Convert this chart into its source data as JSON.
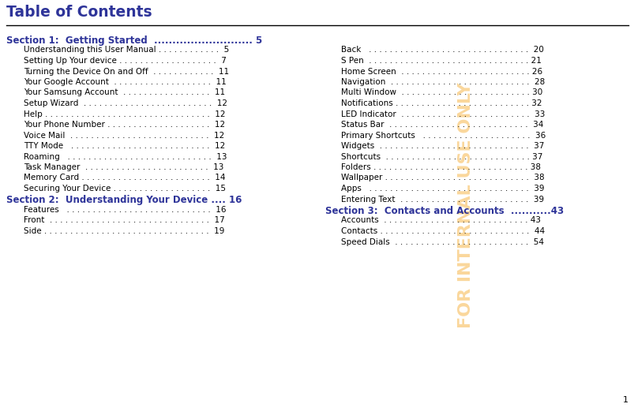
{
  "title": "Table of Contents",
  "title_color": "#2E3499",
  "title_fontsize": 13.5,
  "separator_color": "#000000",
  "background_color": "#ffffff",
  "draft_watermark": "FOR INTERNAL USE ONLY",
  "draft_color": "#f5a623",
  "draft_alpha": 0.45,
  "page_number": "1",
  "section_color": "#2E3499",
  "section_fontsize": 8.5,
  "item_color": "#000000",
  "item_fontsize": 7.5,
  "left_column": [
    {
      "type": "section",
      "text": "Section 1:  Getting Started  ........................... 5"
    },
    {
      "type": "item",
      "text": "Understanding this User Manual . . . . . . . . . . . .  5"
    },
    {
      "type": "item",
      "text": "Setting Up Your device . . . . . . . . . . . . . . . . . . .  7"
    },
    {
      "type": "item",
      "text": "Turning the Device On and Off  . . . . . . . . . . . .  11"
    },
    {
      "type": "item",
      "text": "Your Google Account  . . . . . . . . . . . . . . . . . . .  11"
    },
    {
      "type": "item",
      "text": "Your Samsung Account  . . . . . . . . . . . . . . . . .  11"
    },
    {
      "type": "item",
      "text": "Setup Wizard  . . . . . . . . . . . . . . . . . . . . . . . . .  12"
    },
    {
      "type": "item",
      "text": "Help . . . . . . . . . . . . . . . . . . . . . . . . . . . . . . . .  12"
    },
    {
      "type": "item",
      "text": "Your Phone Number . . . . . . . . . . . . . . . . . . . .  12"
    },
    {
      "type": "item",
      "text": "Voice Mail  . . . . . . . . . . . . . . . . . . . . . . . . . . .  12"
    },
    {
      "type": "item",
      "text": "TTY Mode   . . . . . . . . . . . . . . . . . . . . . . . . . . .  12"
    },
    {
      "type": "item",
      "text": "Roaming   . . . . . . . . . . . . . . . . . . . . . . . . . . . .  13"
    },
    {
      "type": "item",
      "text": "Task Manager  . . . . . . . . . . . . . . . . . . . . . . . .  13"
    },
    {
      "type": "item",
      "text": "Memory Card . . . . . . . . . . . . . . . . . . . . . . . . .  14"
    },
    {
      "type": "item",
      "text": "Securing Your Device . . . . . . . . . . . . . . . . . . .  15"
    },
    {
      "type": "section",
      "text": "Section 2:  Understanding Your Device .... 16"
    },
    {
      "type": "item",
      "text": "Features   . . . . . . . . . . . . . . . . . . . . . . . . . . . .  16"
    },
    {
      "type": "item",
      "text": "Front  . . . . . . . . . . . . . . . . . . . . . . . . . . . . . . .  17"
    },
    {
      "type": "item",
      "text": "Side . . . . . . . . . . . . . . . . . . . . . . . . . . . . . . . .  19"
    }
  ],
  "right_column": [
    {
      "type": "item",
      "text": "Back   . . . . . . . . . . . . . . . . . . . . . . . . . . . . . . .  20"
    },
    {
      "type": "item",
      "text": "S Pen  . . . . . . . . . . . . . . . . . . . . . . . . . . . . . . . 21"
    },
    {
      "type": "item",
      "text": "Home Screen  . . . . . . . . . . . . . . . . . . . . . . . . . 26"
    },
    {
      "type": "item",
      "text": "Navigation  . . . . . . . . . . . . . . . . . . . . . . . . . . .  28"
    },
    {
      "type": "item",
      "text": "Multi Window  . . . . . . . . . . . . . . . . . . . . . . . . . 30"
    },
    {
      "type": "item",
      "text": "Notifications . . . . . . . . . . . . . . . . . . . . . . . . . . 32"
    },
    {
      "type": "item",
      "text": "LED Indicator  . . . . . . . . . . . . . . . . . . . . . . . . .  33"
    },
    {
      "type": "item",
      "text": "Status Bar  . . . . . . . . . . . . . . . . . . . . . . . . . . .  34"
    },
    {
      "type": "item",
      "text": "Primary Shortcuts   . . . . . . . . . . . . . . . . . . . . .  36"
    },
    {
      "type": "item",
      "text": "Widgets  . . . . . . . . . . . . . . . . . . . . . . . . . . . . .  37"
    },
    {
      "type": "item",
      "text": "Shortcuts  . . . . . . . . . . . . . . . . . . . . . . . . . . . . 37"
    },
    {
      "type": "item",
      "text": "Folders . . . . . . . . . . . . . . . . . . . . . . . . . . . . . . 38"
    },
    {
      "type": "item",
      "text": "Wallpaper . . . . . . . . . . . . . . . . . . . . . . . . . . . .  38"
    },
    {
      "type": "item",
      "text": "Apps   . . . . . . . . . . . . . . . . . . . . . . . . . . . . . . .  39"
    },
    {
      "type": "item",
      "text": "Entering Text  . . . . . . . . . . . . . . . . . . . . . . . . .  39"
    },
    {
      "type": "section",
      "text": "Section 3:  Contacts and Accounts  ...........43"
    },
    {
      "type": "item",
      "text": "Accounts  . . . . . . . . . . . . . . . . . . . . . . . . . . . . 43"
    },
    {
      "type": "item",
      "text": "Contacts . . . . . . . . . . . . . . . . . . . . . . . . . . . . .  44"
    },
    {
      "type": "item",
      "text": "Speed Dials  . . . . . . . . . . . . . . . . . . . . . . . . . .  54"
    }
  ]
}
